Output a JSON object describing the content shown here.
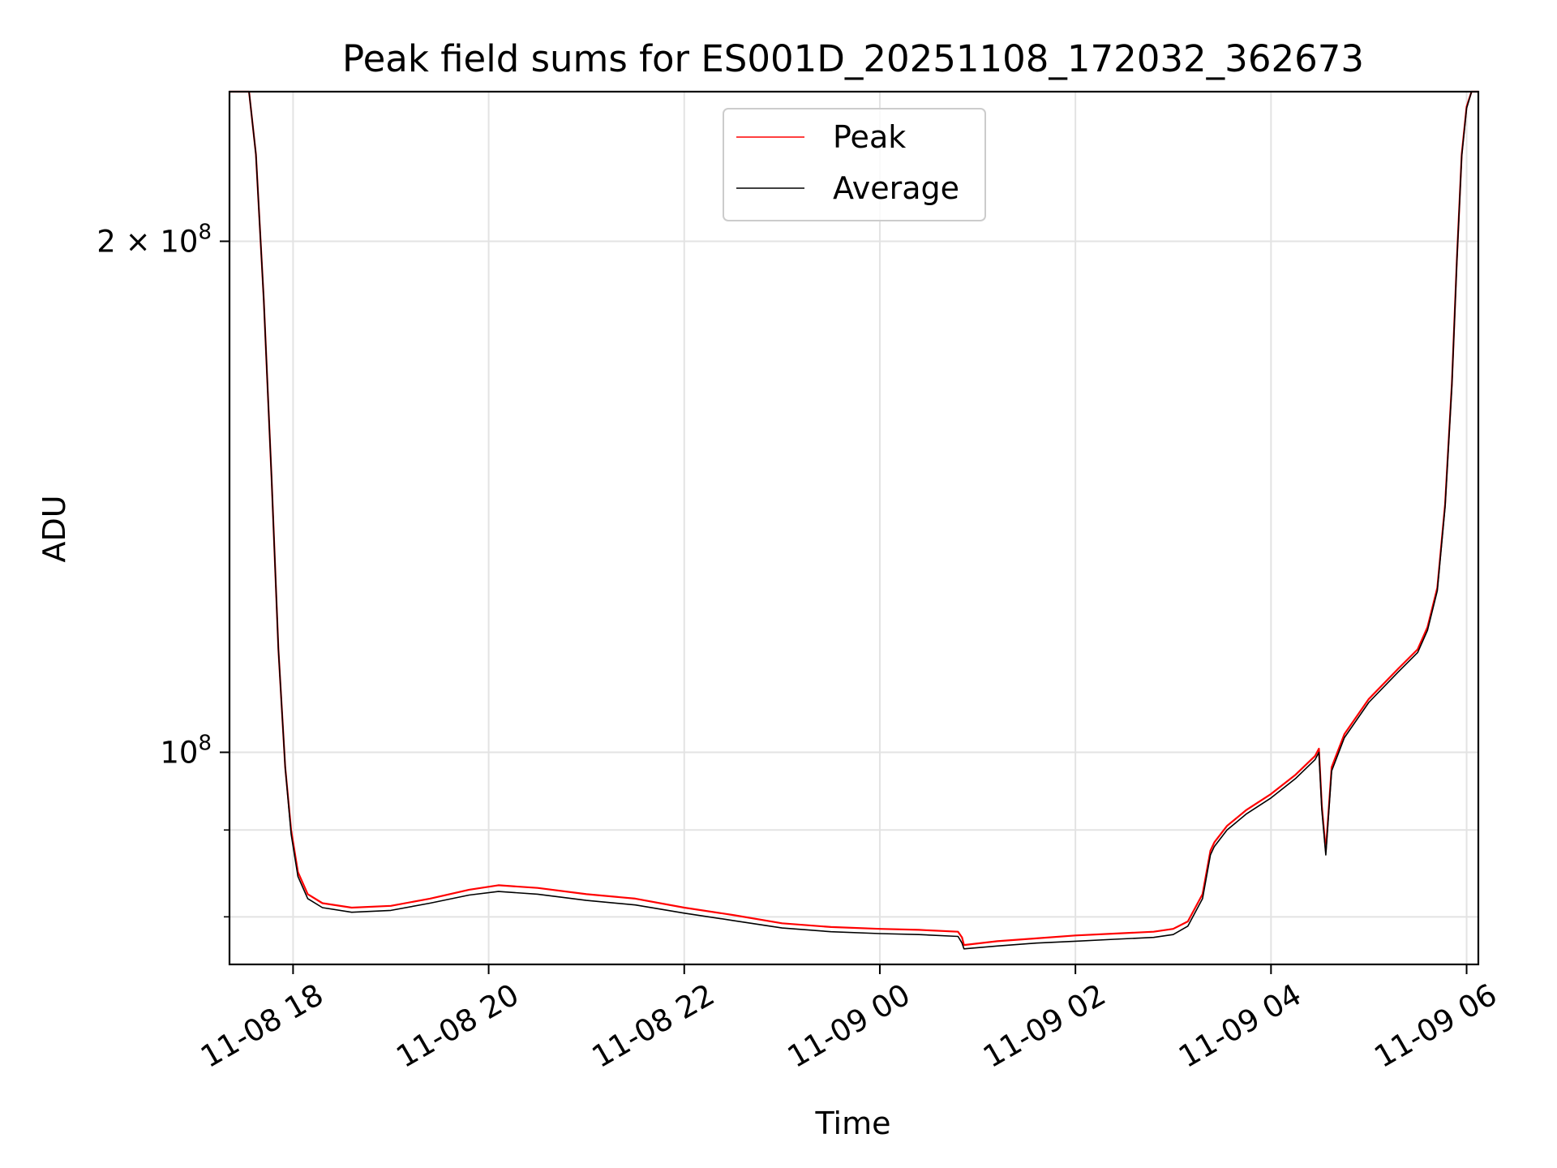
{
  "chart_data": {
    "type": "line",
    "title": "Peak field sums for ES001D_20251108_172032_362673",
    "xlabel": "Time",
    "ylabel": "ADU",
    "yscale": "log",
    "ylim": [
      75000000,
      245000000
    ],
    "xlim_hours": [
      17.35,
      30.12
    ],
    "x_unit": "hours since 2025-11-08 00:00",
    "x_ticks": [
      {
        "value": 18,
        "label": "11-08 18"
      },
      {
        "value": 20,
        "label": "11-08 20"
      },
      {
        "value": 22,
        "label": "11-08 22"
      },
      {
        "value": 24,
        "label": "11-09 00"
      },
      {
        "value": 26,
        "label": "11-09 02"
      },
      {
        "value": 28,
        "label": "11-09 04"
      },
      {
        "value": 30,
        "label": "11-09 06"
      }
    ],
    "y_major_ticks": [
      {
        "value": 100000000,
        "base": "10",
        "exp": "8",
        "coef": ""
      },
      {
        "value": 200000000,
        "base": "10",
        "exp": "8",
        "coef": "2 × "
      }
    ],
    "y_minor_ticks": [
      80000000,
      90000000
    ],
    "grid": true,
    "legend_position": "top-center",
    "series": [
      {
        "name": "Peak",
        "color": "#ff0000",
        "x": [
          17.35,
          17.55,
          17.62,
          17.7,
          17.78,
          17.85,
          17.92,
          17.98,
          18.05,
          18.15,
          18.3,
          18.6,
          19.0,
          19.4,
          19.8,
          20.1,
          20.5,
          21.0,
          21.5,
          22.0,
          22.5,
          23.0,
          23.5,
          24.0,
          24.4,
          24.8,
          24.84,
          24.86,
          25.2,
          25.6,
          26.0,
          26.4,
          26.8,
          27.0,
          27.15,
          27.3,
          27.38,
          27.42,
          27.55,
          27.75,
          28.0,
          28.25,
          28.45,
          28.49,
          28.52,
          28.56,
          28.62,
          28.75,
          29.0,
          29.3,
          29.5,
          29.6,
          29.7,
          29.78,
          29.85,
          29.9,
          29.95,
          30.0,
          30.05,
          30.12
        ],
        "values": [
          245000000,
          245000000,
          225000000,
          185000000,
          145000000,
          115000000,
          98000000,
          90000000,
          85000000,
          82500000,
          81500000,
          81000000,
          81200000,
          82000000,
          83000000,
          83500000,
          83200000,
          82500000,
          82000000,
          81000000,
          80200000,
          79300000,
          78900000,
          78700000,
          78600000,
          78400000,
          77800000,
          77000000,
          77400000,
          77700000,
          78000000,
          78200000,
          78400000,
          78700000,
          79500000,
          82500000,
          87500000,
          88500000,
          90500000,
          92500000,
          94500000,
          97000000,
          99500000,
          100500000,
          93000000,
          87500000,
          98000000,
          102500000,
          107500000,
          112000000,
          115000000,
          118500000,
          125000000,
          140000000,
          165000000,
          195000000,
          225000000,
          240000000,
          245000000,
          245000000
        ]
      },
      {
        "name": "Average",
        "color": "#000000",
        "x": [
          17.35,
          17.55,
          17.62,
          17.7,
          17.78,
          17.85,
          17.92,
          17.98,
          18.05,
          18.15,
          18.3,
          18.6,
          19.0,
          19.4,
          19.8,
          20.1,
          20.5,
          21.0,
          21.5,
          22.0,
          22.5,
          23.0,
          23.5,
          24.0,
          24.4,
          24.8,
          24.84,
          24.86,
          25.2,
          25.6,
          26.0,
          26.4,
          26.8,
          27.0,
          27.15,
          27.3,
          27.38,
          27.42,
          27.55,
          27.75,
          28.0,
          28.25,
          28.45,
          28.49,
          28.52,
          28.56,
          28.62,
          28.75,
          29.0,
          29.3,
          29.5,
          29.6,
          29.7,
          29.78,
          29.85,
          29.9,
          29.95,
          30.0,
          30.05,
          30.12
        ],
        "values": [
          245000000,
          245000000,
          225000000,
          185000000,
          145000000,
          115000000,
          98000000,
          89500000,
          84500000,
          82000000,
          81000000,
          80500000,
          80700000,
          81500000,
          82400000,
          82800000,
          82500000,
          81800000,
          81300000,
          80400000,
          79600000,
          78800000,
          78400000,
          78200000,
          78100000,
          77900000,
          77200000,
          76600000,
          76900000,
          77200000,
          77400000,
          77600000,
          77800000,
          78100000,
          79000000,
          82000000,
          87000000,
          88000000,
          90000000,
          92000000,
          94000000,
          96500000,
          99000000,
          100000000,
          92500000,
          87000000,
          97500000,
          102000000,
          107000000,
          111500000,
          114500000,
          118000000,
          124500000,
          139500000,
          164500000,
          194500000,
          224500000,
          239500000,
          245000000,
          245000000
        ]
      }
    ]
  }
}
